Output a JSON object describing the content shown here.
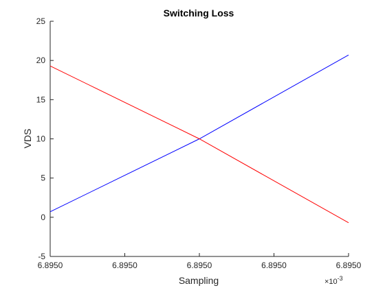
{
  "chart_data": {
    "type": "line",
    "title": "Switching Loss",
    "xlabel": "Sampling",
    "ylabel": "VDS",
    "x_exponent_label": {
      "base": "×10",
      "power": "-3"
    },
    "xlim": [
      0,
      4
    ],
    "ylim": [
      -5,
      25
    ],
    "x_tick_labels": [
      "6.8950",
      "6.8950",
      "6.8950",
      "6.8950",
      "6.8950"
    ],
    "y_ticks": [
      -5,
      0,
      5,
      10,
      15,
      20,
      25
    ],
    "grid": false,
    "legend": "none",
    "series": [
      {
        "color": "#0000ff",
        "x": [
          0,
          2,
          4
        ],
        "y": [
          0.7,
          10.0,
          20.7
        ]
      },
      {
        "color": "#ff0000",
        "x": [
          0,
          2,
          4
        ],
        "y": [
          19.3,
          10.0,
          -0.7
        ]
      }
    ]
  }
}
